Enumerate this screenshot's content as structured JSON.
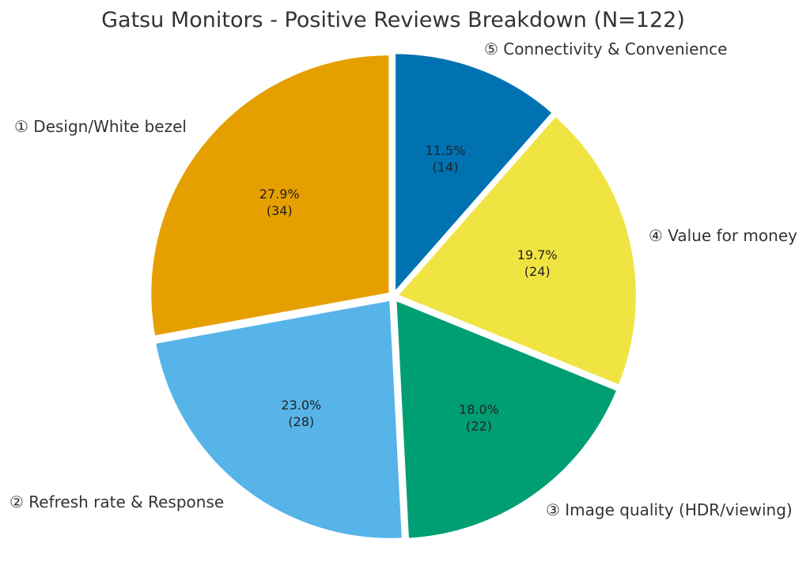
{
  "chart_data": {
    "type": "pie",
    "title": "Gatsu Monitors - Positive Reviews Breakdown (N=122)",
    "start_angle_deg": 90,
    "direction": "clockwise",
    "exploded": true,
    "slices": [
      {
        "label": "⑤ Connectivity & Convenience",
        "value": 14,
        "pct_label": "11.5%",
        "count_label": "(14)",
        "color": "#0072B2"
      },
      {
        "label": "④ Value for money",
        "value": 24,
        "pct_label": "19.7%",
        "count_label": "(24)",
        "color": "#F0E442"
      },
      {
        "label": "③ Image quality (HDR/viewing)",
        "value": 22,
        "pct_label": "18.0%",
        "count_label": "(22)",
        "color": "#009E73"
      },
      {
        "label": "② Refresh rate & Response",
        "value": 28,
        "pct_label": "23.0%",
        "count_label": "(28)",
        "color": "#56B4E9"
      },
      {
        "label": "① Design/White bezel",
        "value": 34,
        "pct_label": "27.9%",
        "count_label": "(34)",
        "color": "#E69F00"
      }
    ]
  }
}
